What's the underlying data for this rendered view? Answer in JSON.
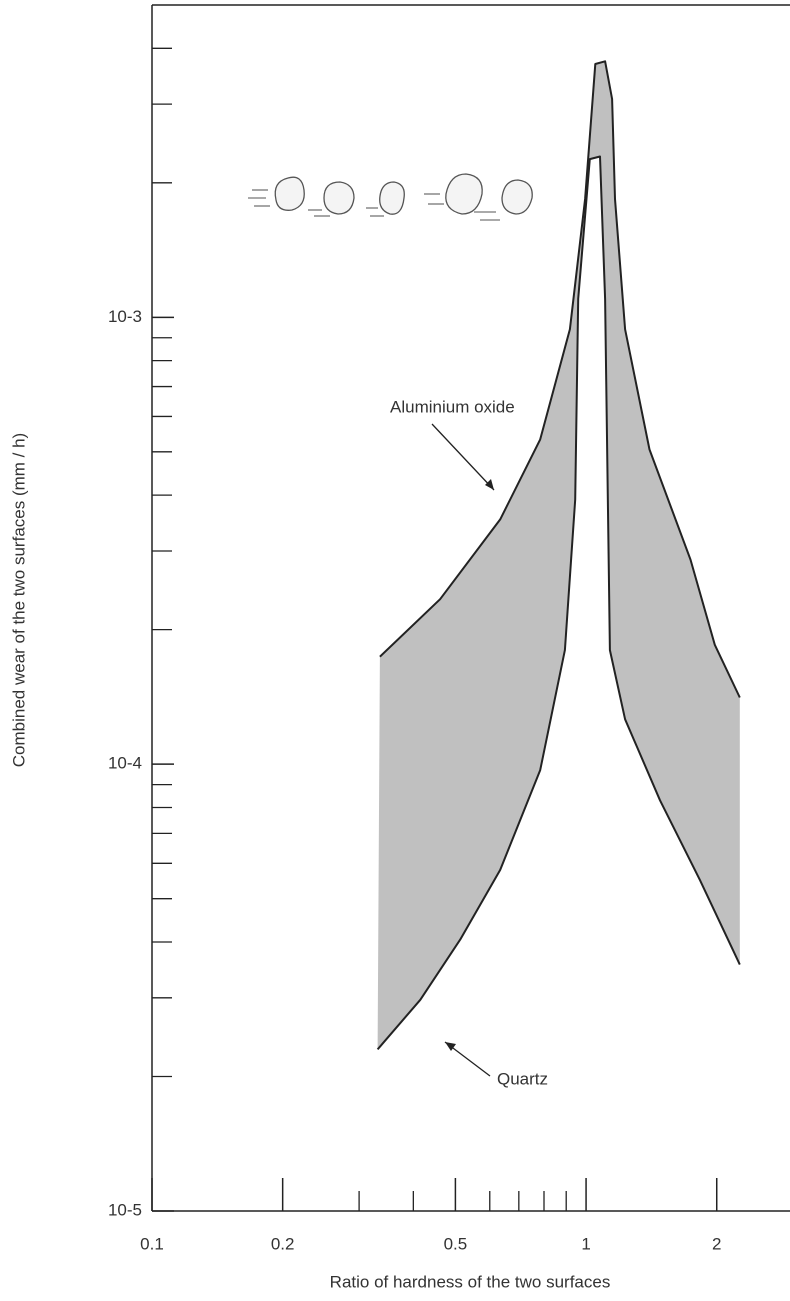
{
  "chart_data": {
    "type": "area_band",
    "x_label": "Ratio of hardness of the two surfaces",
    "y_label": "Combined wear of the two surfaces (mm / h)",
    "log_x": true,
    "log_y": true,
    "xlim": [
      0.1,
      2.95
    ],
    "ylim": [
      1e-05,
      0.005
    ],
    "xticks": [
      0.1,
      0.2,
      0.5,
      1,
      2
    ],
    "xticks_minor": [
      0.3,
      0.4,
      0.6,
      0.7,
      0.8,
      0.9
    ],
    "yticks": [
      {
        "value": 1e-05,
        "label": "10-5"
      },
      {
        "value": 0.0001,
        "label": "10-4"
      },
      {
        "value": 0.001,
        "label": "10-3"
      }
    ],
    "yticks_minor": [
      2e-05,
      3e-05,
      4e-05,
      5e-05,
      6e-05,
      7e-05,
      8e-05,
      9e-05,
      0.0002,
      0.0003,
      0.0004,
      0.0005,
      0.0006,
      0.0007,
      0.0008,
      0.0009,
      0.002,
      0.003,
      0.004
    ],
    "fill_color": "#b9b9b9",
    "series": [
      {
        "name": "Aluminium oxide",
        "color": "#222222",
        "x": [
          0.335,
          0.461,
          0.634,
          0.784,
          0.918,
          0.995,
          1.05,
          1.106,
          1.148,
          1.166,
          1.23,
          1.4,
          1.74,
          1.98,
          2.26
        ],
        "values": [
          0.000174,
          0.000234,
          0.000353,
          0.000533,
          0.00094,
          0.00184,
          0.00369,
          0.00374,
          0.00308,
          0.00184,
          0.00094,
          0.000506,
          0.000287,
          0.000185,
          0.000141
        ]
      },
      {
        "name": "Quartz",
        "color": "#222222",
        "x": [
          0.331,
          0.415,
          0.513,
          0.634,
          0.784,
          0.894,
          0.944,
          0.959,
          1.02,
          1.077,
          1.106,
          1.135,
          1.23,
          1.48,
          1.83,
          2.26
        ],
        "values": [
          2.3e-05,
          2.97e-05,
          4.05e-05,
          5.8e-05,
          9.7e-05,
          0.00018,
          0.000391,
          0.0011,
          0.00226,
          0.00229,
          0.0011,
          0.00018,
          0.000126,
          8.3e-05,
          5.5e-05,
          3.56e-05
        ]
      }
    ]
  }
}
